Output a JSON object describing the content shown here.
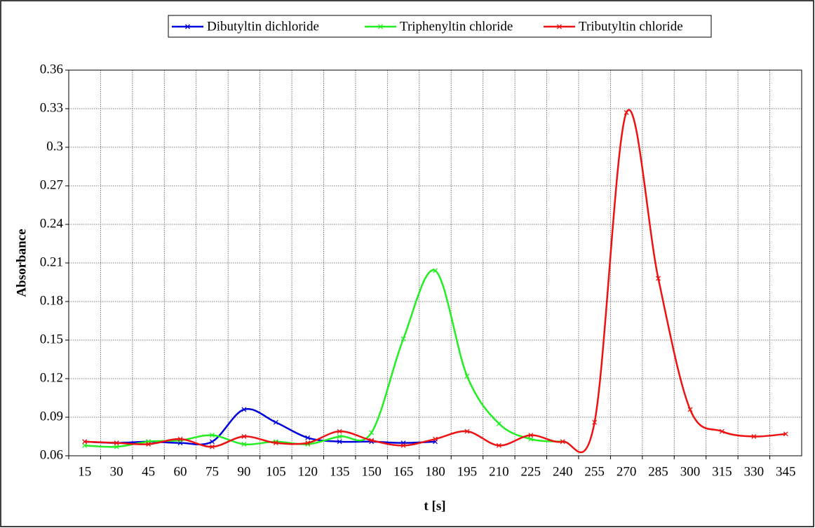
{
  "chart_data": {
    "type": "line",
    "x_label": "t [s]",
    "y_label": "Absorbance",
    "categories": [
      15,
      30,
      45,
      60,
      75,
      90,
      105,
      120,
      135,
      150,
      165,
      180,
      195,
      210,
      225,
      240,
      255,
      270,
      285,
      300,
      315,
      330,
      345
    ],
    "series": [
      {
        "name": "Dibutyltin dichloride",
        "color": "#0000dd",
        "values": [
          0.071,
          0.07,
          0.071,
          0.07,
          0.071,
          0.096,
          0.086,
          0.074,
          0.071,
          0.071,
          0.07,
          0.071,
          null,
          null,
          null,
          null,
          null,
          null,
          null,
          null,
          null,
          null,
          null
        ]
      },
      {
        "name": "Triphenyltin chloride",
        "color": "#22ee22",
        "values": [
          0.068,
          0.067,
          0.071,
          0.072,
          0.076,
          0.069,
          0.071,
          0.069,
          0.075,
          0.078,
          0.151,
          0.204,
          0.122,
          0.085,
          0.073,
          0.071,
          null,
          null,
          null,
          null,
          null,
          null,
          null
        ]
      },
      {
        "name": "Tributyltin chloride",
        "color": "#ee1111",
        "values": [
          0.071,
          0.07,
          0.069,
          0.073,
          0.067,
          0.075,
          0.07,
          0.07,
          0.079,
          0.072,
          0.068,
          0.073,
          0.079,
          0.068,
          0.076,
          0.071,
          0.086,
          0.327,
          0.198,
          0.096,
          0.079,
          0.075,
          0.077
        ]
      }
    ],
    "ylim": [
      0.06,
      0.36
    ],
    "yticks": [
      0.06,
      0.09,
      0.12,
      0.15,
      0.18,
      0.21,
      0.24,
      0.27,
      0.3,
      0.33,
      0.36
    ],
    "grid": true,
    "legend": "top"
  }
}
